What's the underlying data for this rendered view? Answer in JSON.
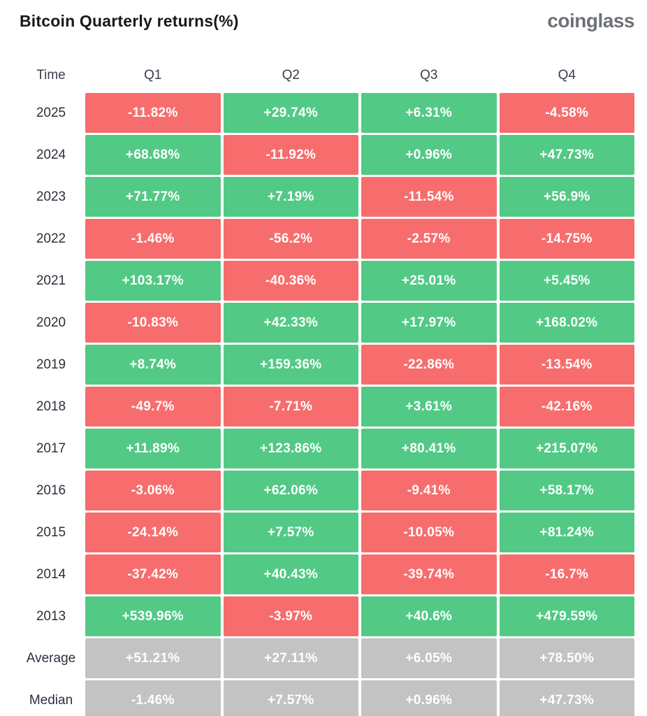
{
  "header": {
    "title": "Bitcoin Quarterly returns(%)",
    "logo": "coinglass"
  },
  "colors": {
    "positive": "#52c985",
    "negative": "#f76d6d",
    "summary": "#c3c3c3"
  },
  "table": {
    "columns": [
      "Time",
      "Q1",
      "Q2",
      "Q3",
      "Q4"
    ],
    "rows": [
      {
        "label": "2025",
        "summary": false,
        "values": [
          "-11.82%",
          "+29.74%",
          "+6.31%",
          "-4.58%"
        ]
      },
      {
        "label": "2024",
        "summary": false,
        "values": [
          "+68.68%",
          "-11.92%",
          "+0.96%",
          "+47.73%"
        ]
      },
      {
        "label": "2023",
        "summary": false,
        "values": [
          "+71.77%",
          "+7.19%",
          "-11.54%",
          "+56.9%"
        ]
      },
      {
        "label": "2022",
        "summary": false,
        "values": [
          "-1.46%",
          "-56.2%",
          "-2.57%",
          "-14.75%"
        ]
      },
      {
        "label": "2021",
        "summary": false,
        "values": [
          "+103.17%",
          "-40.36%",
          "+25.01%",
          "+5.45%"
        ]
      },
      {
        "label": "2020",
        "summary": false,
        "values": [
          "-10.83%",
          "+42.33%",
          "+17.97%",
          "+168.02%"
        ]
      },
      {
        "label": "2019",
        "summary": false,
        "values": [
          "+8.74%",
          "+159.36%",
          "-22.86%",
          "-13.54%"
        ]
      },
      {
        "label": "2018",
        "summary": false,
        "values": [
          "-49.7%",
          "-7.71%",
          "+3.61%",
          "-42.16%"
        ]
      },
      {
        "label": "2017",
        "summary": false,
        "values": [
          "+11.89%",
          "+123.86%",
          "+80.41%",
          "+215.07%"
        ]
      },
      {
        "label": "2016",
        "summary": false,
        "values": [
          "-3.06%",
          "+62.06%",
          "-9.41%",
          "+58.17%"
        ]
      },
      {
        "label": "2015",
        "summary": false,
        "values": [
          "-24.14%",
          "+7.57%",
          "-10.05%",
          "+81.24%"
        ]
      },
      {
        "label": "2014",
        "summary": false,
        "values": [
          "-37.42%",
          "+40.43%",
          "-39.74%",
          "-16.7%"
        ]
      },
      {
        "label": "2013",
        "summary": false,
        "values": [
          "+539.96%",
          "-3.97%",
          "+40.6%",
          "+479.59%"
        ]
      },
      {
        "label": "Average",
        "summary": true,
        "values": [
          "+51.21%",
          "+27.11%",
          "+6.05%",
          "+78.50%"
        ]
      },
      {
        "label": "Median",
        "summary": true,
        "values": [
          "-1.46%",
          "+7.57%",
          "+0.96%",
          "+47.73%"
        ]
      }
    ]
  },
  "chart_data": {
    "type": "table",
    "title": "Bitcoin Quarterly returns(%)",
    "columns": [
      "Q1",
      "Q2",
      "Q3",
      "Q4"
    ],
    "row_labels": [
      "2025",
      "2024",
      "2023",
      "2022",
      "2021",
      "2020",
      "2019",
      "2018",
      "2017",
      "2016",
      "2015",
      "2014",
      "2013",
      "Average",
      "Median"
    ],
    "values": [
      [
        -11.82,
        29.74,
        6.31,
        -4.58
      ],
      [
        68.68,
        -11.92,
        0.96,
        47.73
      ],
      [
        71.77,
        7.19,
        -11.54,
        56.9
      ],
      [
        -1.46,
        -56.2,
        -2.57,
        -14.75
      ],
      [
        103.17,
        -40.36,
        25.01,
        5.45
      ],
      [
        -10.83,
        42.33,
        17.97,
        168.02
      ],
      [
        8.74,
        159.36,
        -22.86,
        -13.54
      ],
      [
        -49.7,
        -7.71,
        3.61,
        -42.16
      ],
      [
        11.89,
        123.86,
        80.41,
        215.07
      ],
      [
        -3.06,
        62.06,
        -9.41,
        58.17
      ],
      [
        -24.14,
        7.57,
        -10.05,
        81.24
      ],
      [
        -37.42,
        40.43,
        -39.74,
        -16.7
      ],
      [
        539.96,
        -3.97,
        40.6,
        479.59
      ],
      [
        51.21,
        27.11,
        6.05,
        78.5
      ],
      [
        -1.46,
        7.57,
        0.96,
        47.73
      ]
    ],
    "legend": "green = positive return, red = negative return, gray = summary rows",
    "layout": "heatmap-style table, rows newest year first, summary rows (Average, Median) at bottom"
  }
}
